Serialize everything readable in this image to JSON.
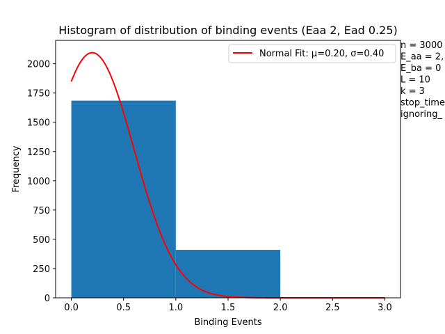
{
  "chart_data": {
    "type": "bar",
    "title": "Histogram of distribution of binding events (Eaa 2, Ead 0.25)",
    "xlabel": "Binding Events",
    "ylabel": "Frequency",
    "xlim": [
      -0.15,
      3.15
    ],
    "ylim": [
      0,
      2200
    ],
    "xticks": [
      "0.0",
      "0.5",
      "1.0",
      "1.5",
      "2.0",
      "2.5",
      "3.0"
    ],
    "yticks": [
      "0",
      "250",
      "500",
      "750",
      "1000",
      "1250",
      "1500",
      "1750",
      "2000"
    ],
    "bins": [
      {
        "start": 0,
        "end": 1,
        "value": 1685
      },
      {
        "start": 1,
        "end": 2,
        "value": 410
      },
      {
        "start": 2,
        "end": 3,
        "value": 0
      }
    ],
    "bar_color": "#1f77b4",
    "fit": {
      "label": "Normal Fit: μ=0.20, σ=0.40",
      "mu": 0.2,
      "sigma": 0.4,
      "peak": 2095,
      "color": "#ff0000"
    },
    "legend_position": "top-right",
    "grid": false,
    "side_text": [
      "n = 3000",
      "E_aa = 2,",
      "E_ba = 0",
      "L = 10",
      "k = 3",
      "stop_time",
      "ignoring_"
    ]
  }
}
